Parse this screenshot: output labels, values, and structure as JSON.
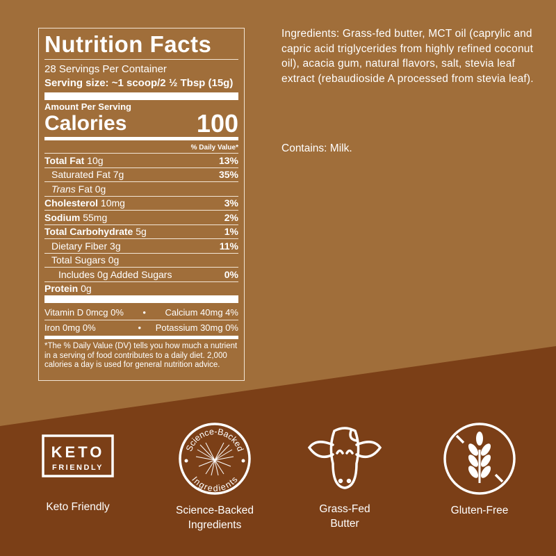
{
  "colors": {
    "background_top": "#a06e3a",
    "background_bottom": "#7b3f17",
    "text": "#ffffff"
  },
  "label": {
    "title": "Nutrition Facts",
    "servings": "28 Servings Per Container",
    "serving_size": "Serving size: ~1 scoop/2 ½ Tbsp (15g)",
    "amount_per_serving": "Amount Per Serving",
    "calories_label": "Calories",
    "calories_value": "100",
    "daily_value_header": "% Daily Value*",
    "rows": [
      {
        "name": "Total Fat",
        "amount": "10g",
        "dv": "13%"
      },
      {
        "name": "Saturated Fat",
        "amount": "7g",
        "dv": "35%"
      },
      {
        "name": "Trans",
        "name2": "Fat 0g",
        "dv": ""
      },
      {
        "name": "Cholesterol",
        "amount": "10mg",
        "dv": "3%"
      },
      {
        "name": "Sodium",
        "amount": "55mg",
        "dv": "2%"
      },
      {
        "name": "Total Carbohydrate",
        "amount": "5g",
        "dv": "1%"
      },
      {
        "name": "Dietary Fiber",
        "amount": "3g",
        "dv": "11%"
      },
      {
        "name": "Total Sugars",
        "amount": "0g",
        "dv": ""
      },
      {
        "name": "Includes 0g Added Sugars",
        "amount": "",
        "dv": "0%"
      },
      {
        "name": "Protein",
        "amount": "0g",
        "dv": ""
      }
    ],
    "vitamins": [
      {
        "left": "Vitamin D 0mcg 0%",
        "right": "Calcium 40mg 4%"
      },
      {
        "left": "Iron 0mg 0%",
        "right": "Potassium 30mg 0%"
      }
    ],
    "bullet": "•",
    "footnote": "*The % Daily Value (DV) tells you how much a nutrient in a serving of food contributes to a daily diet. 2,000 calories a day is used for general nutrition advice."
  },
  "ingredients": "Ingredients: Grass-fed butter, MCT oil (caprylic and capric acid triglycerides from highly refined coconut oil), acacia gum, natural flavors, salt, stevia leaf extract (rebaudioside A processed from stevia leaf).",
  "contains": "Contains: Milk.",
  "badges": [
    {
      "icon": "keto-badge-icon",
      "icon_text_1": "KETO",
      "icon_text_2": "FRIENDLY",
      "label": "Keto Friendly"
    },
    {
      "icon": "science-seal-icon",
      "icon_text_1": "Science-Backed",
      "icon_text_2": "Ingredients",
      "label_1": "Science-Backed",
      "label_2": "Ingredients"
    },
    {
      "icon": "cow-icon",
      "label_1": "Grass-Fed",
      "label_2": "Butter"
    },
    {
      "icon": "no-wheat-icon",
      "label": "Gluten-Free"
    }
  ]
}
